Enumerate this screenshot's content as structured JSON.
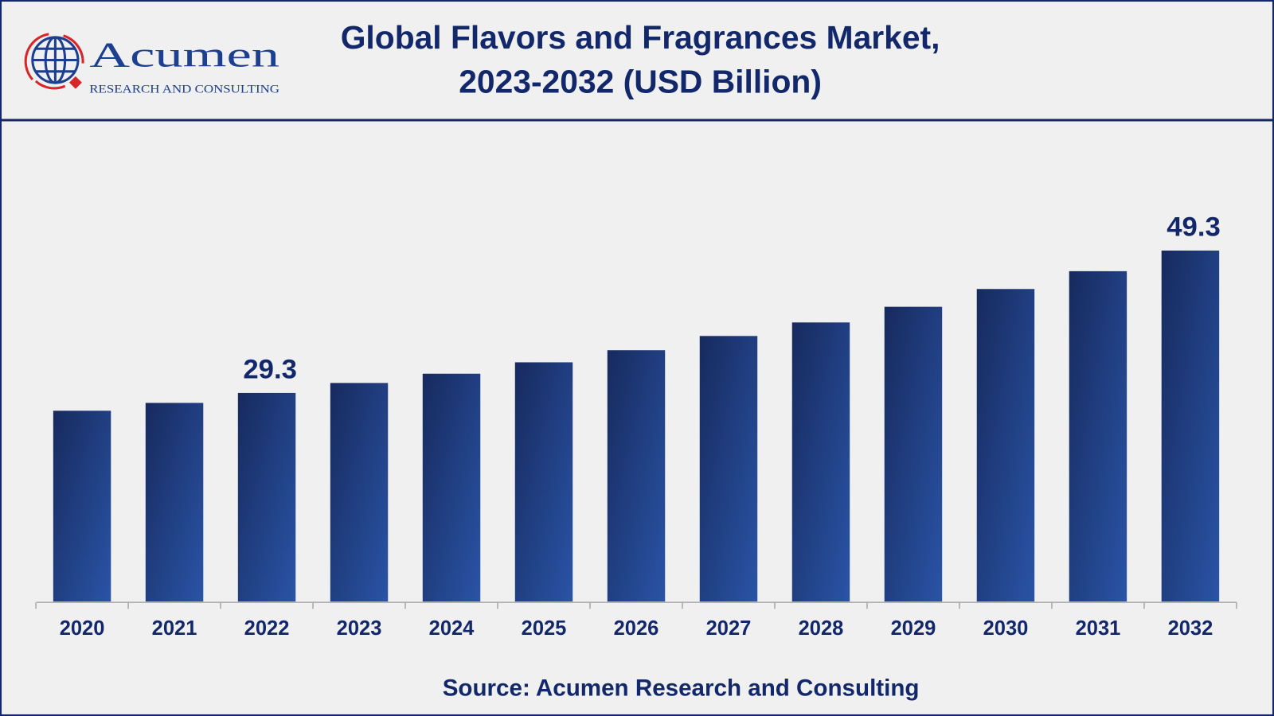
{
  "logo": {
    "name": "Acumen",
    "tagline": "RESEARCH AND CONSULTING"
  },
  "colors": {
    "bar": "#1f3f88",
    "text": "#13286a",
    "border": "#13286a",
    "logo_red": "#d9242a"
  },
  "chart_data": {
    "type": "bar",
    "title_line1": "Global Flavors and Fragrances Market,",
    "title_line2": "2023-2032 (USD Billion)",
    "categories": [
      "2020",
      "2021",
      "2022",
      "2023",
      "2024",
      "2025",
      "2026",
      "2027",
      "2028",
      "2029",
      "2030",
      "2031",
      "2032"
    ],
    "values": [
      26.8,
      27.9,
      29.3,
      30.7,
      32.0,
      33.6,
      35.3,
      37.3,
      39.2,
      41.4,
      43.9,
      46.4,
      49.3
    ],
    "data_labels": {
      "2022": "29.3",
      "2032": "49.3"
    },
    "ylim": [
      0,
      55
    ],
    "grid": false,
    "legend": "none",
    "source": "Source: Acumen Research and Consulting"
  }
}
